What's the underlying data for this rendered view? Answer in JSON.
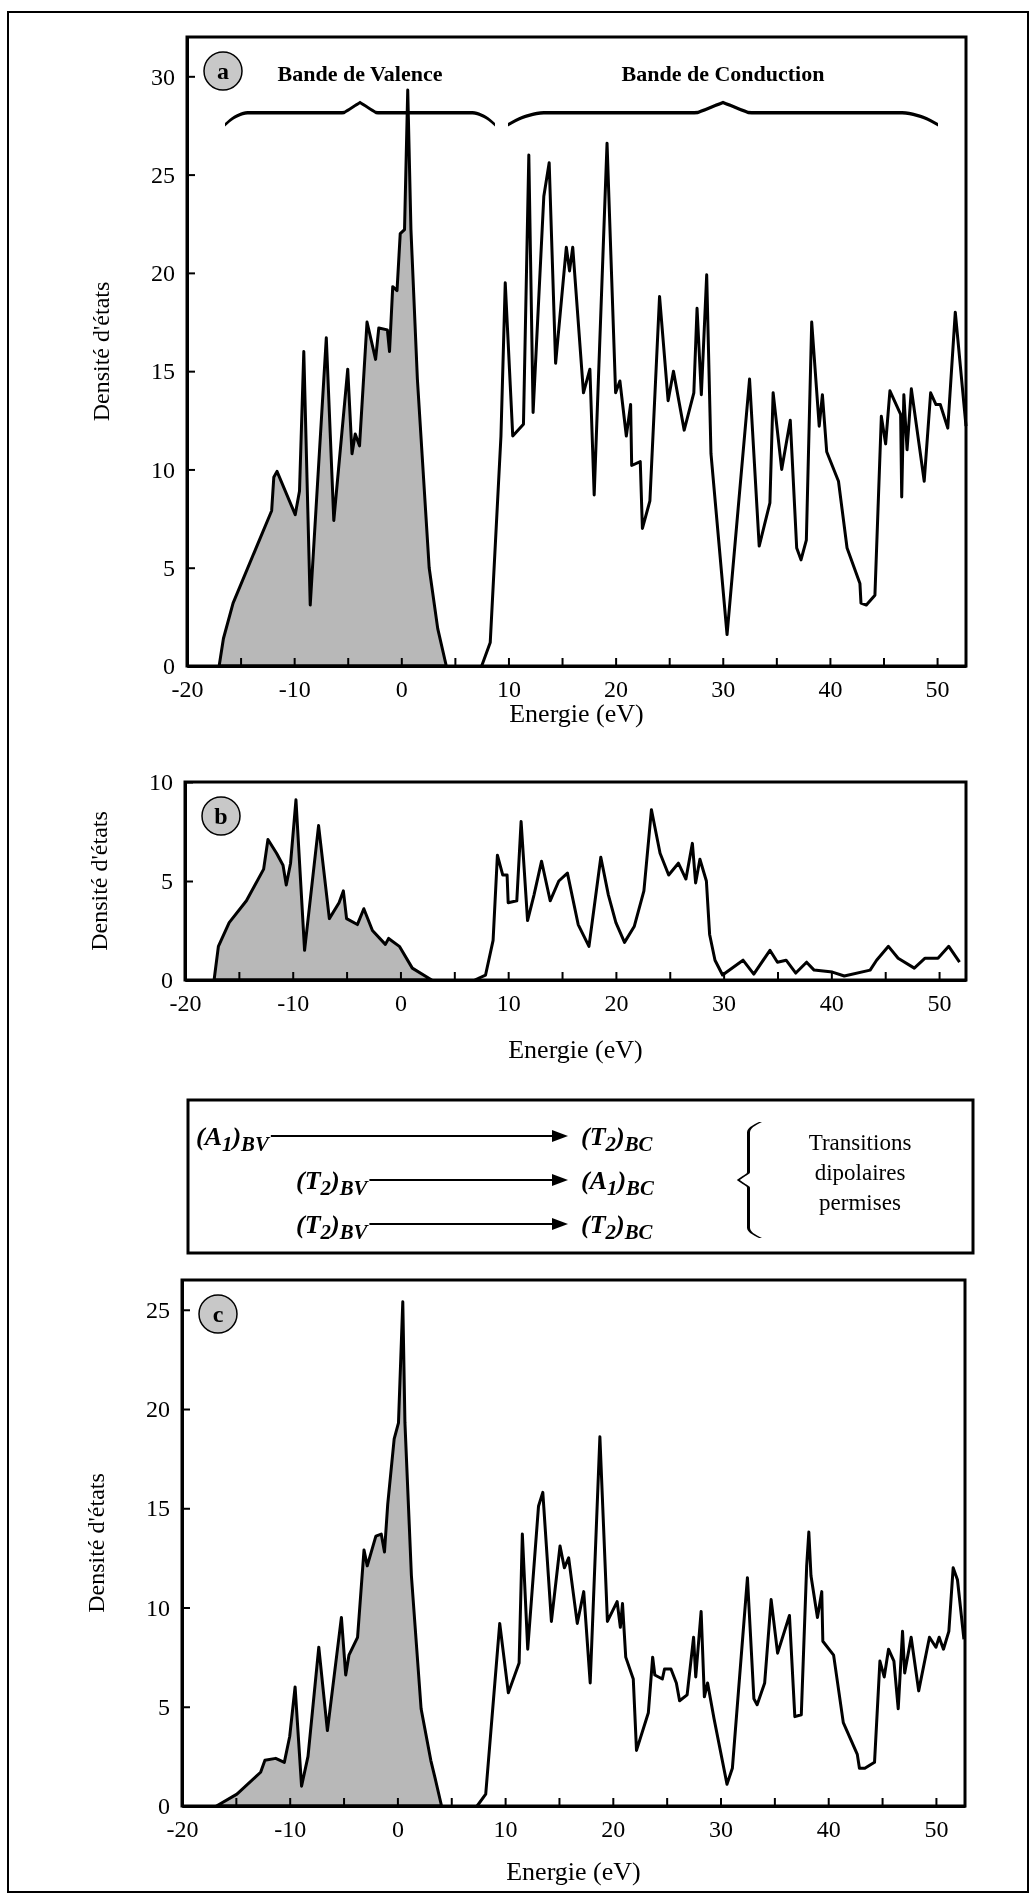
{
  "chart_data": [
    {
      "type": "line",
      "title": "a",
      "xlabel": "Energie (eV)",
      "ylabel": "Densité d'états",
      "xlim": [
        -20,
        52.7
      ],
      "ylim": [
        0,
        32
      ],
      "xticks": [
        -20,
        {
          "value": -15,
          "label": null
        },
        -10,
        {
          "value": -5,
          "label": null
        },
        0,
        {
          "value": 5,
          "label": null
        },
        10,
        {
          "value": 15,
          "label": null
        },
        20,
        {
          "value": 25,
          "label": null
        },
        30,
        {
          "value": 35,
          "label": null
        },
        40,
        {
          "value": 45,
          "label": null
        },
        50
      ],
      "yticks": [
        0,
        5,
        10,
        15,
        20,
        25,
        30
      ],
      "annotations": [
        "Bande de Valence",
        "Bande de Conduction"
      ],
      "series": [
        {
          "type": "area",
          "color": "#b8b8b8",
          "x": [
            -17.0,
            -16.6,
            -15.7,
            -12.1,
            -11.9,
            -11.6,
            -9.9,
            -9.5,
            -9.1,
            -8.5,
            -7.0,
            -6.3,
            -5.0,
            -4.6,
            -4.3,
            -3.9,
            -3.2,
            -2.4,
            -2.1,
            -1.3,
            -1.1,
            -0.8,
            -0.4,
            -0.1,
            0.3,
            0.6,
            0.9,
            1.5,
            2.6,
            3.4,
            4.2
          ],
          "values": [
            0,
            1.4,
            3.2,
            7.9,
            9.6,
            9.9,
            7.7,
            8.9,
            16.0,
            3.1,
            16.7,
            7.4,
            15.1,
            10.8,
            11.8,
            11.2,
            17.5,
            15.6,
            17.2,
            17.1,
            16.0,
            19.3,
            19.1,
            22.0,
            22.2,
            29.3,
            22.2,
            14.6,
            5.0,
            1.9,
            0
          ]
        },
        {
          "type": "line",
          "color": "#000000",
          "x": [
            7.5,
            8.3,
            9.3,
            9.7,
            10.4,
            11.4,
            11.9,
            12.3,
            13.3,
            13.8,
            14.4,
            15.4,
            15.7,
            16.0,
            17.0,
            17.6,
            18.0,
            19.2,
            20.0,
            20.4,
            21.0,
            21.4,
            21.5,
            22.3,
            22.5,
            23.2,
            24.1,
            24.9,
            25.4,
            26.4,
            27.3,
            27.6,
            28.0,
            28.5,
            28.9,
            30.4,
            32.5,
            33.4,
            34.4,
            34.7,
            35.5,
            36.3,
            36.9,
            37.3,
            37.8,
            38.3,
            39.0,
            39.3,
            39.7,
            40.8,
            41.6,
            42.8,
            42.9,
            43.4,
            44.2,
            44.8,
            45.2,
            45.6,
            46.6,
            46.7,
            46.9,
            47.2,
            47.6,
            48.8,
            49.4,
            49.9,
            50.3,
            51.0,
            51.7,
            52.7
          ],
          "values": [
            0,
            1.2,
            11.7,
            19.5,
            11.7,
            12.3,
            26.0,
            12.9,
            23.9,
            25.6,
            15.4,
            21.3,
            20.1,
            21.3,
            13.9,
            15.1,
            8.7,
            26.6,
            13.9,
            14.5,
            11.7,
            13.3,
            10.2,
            10.4,
            7.0,
            8.4,
            18.8,
            13.5,
            15.0,
            12.0,
            13.9,
            18.2,
            13.8,
            19.9,
            10.8,
            1.6,
            14.6,
            6.1,
            8.3,
            13.9,
            10.0,
            12.5,
            6.0,
            5.4,
            6.4,
            17.5,
            12.2,
            13.8,
            10.9,
            9.4,
            6.0,
            4.2,
            3.2,
            3.1,
            3.6,
            12.7,
            11.3,
            14.0,
            12.8,
            8.6,
            13.8,
            11.0,
            14.1,
            9.4,
            13.9,
            13.3,
            13.3,
            12.1,
            18.0,
            12.2
          ]
        }
      ]
    },
    {
      "type": "line",
      "title": "b",
      "xlabel": "Energie (eV)",
      "ylabel": "Densité d'états",
      "xlim": [
        -20,
        52.5
      ],
      "ylim": [
        0,
        10
      ],
      "xticks": [
        -20,
        {
          "value": -15,
          "label": null
        },
        -10,
        {
          "value": -5,
          "label": null
        },
        0,
        {
          "value": 5,
          "label": null
        },
        10,
        {
          "value": 15,
          "label": null
        },
        20,
        {
          "value": 25,
          "label": null
        },
        30,
        {
          "value": 35,
          "label": null
        },
        40,
        {
          "value": 45,
          "label": null
        },
        50
      ],
      "yticks": [
        0,
        5,
        10
      ],
      "series": [
        {
          "type": "area",
          "color": "#b8b8b8",
          "x": [
            -17.3,
            -16.9,
            -15.9,
            -14.3,
            -12.7,
            -12.3,
            -11.5,
            -10.9,
            -10.6,
            -10.2,
            -9.7,
            -8.9,
            -7.6,
            -6.6,
            -5.7,
            -5.3,
            -5.0,
            -4.0,
            -3.4,
            -2.6,
            -1.4,
            -1.1,
            -0.1,
            1.1,
            2.9
          ],
          "values": [
            0,
            1.7,
            2.9,
            4.0,
            5.6,
            7.1,
            6.4,
            5.8,
            4.8,
            5.9,
            9.1,
            1.5,
            7.8,
            3.1,
            3.9,
            4.5,
            3.1,
            2.8,
            3.6,
            2.5,
            1.8,
            2.1,
            1.7,
            0.6,
            0
          ]
        },
        {
          "type": "line",
          "color": "#000000",
          "x": [
            6.9,
            7.9,
            8.6,
            9.0,
            9.5,
            9.9,
            10.0,
            10.8,
            11.2,
            11.8,
            12.4,
            13.1,
            13.9,
            14.7,
            15.5,
            16.5,
            17.5,
            18.6,
            19.3,
            20.0,
            20.8,
            21.7,
            22.6,
            23.3,
            24.1,
            24.9,
            25.8,
            26.5,
            27.1,
            27.4,
            27.8,
            28.4,
            28.7,
            29.2,
            29.9,
            31.8,
            32.8,
            34.3,
            35.0,
            35.8,
            36.7,
            37.7,
            38.4,
            40.1,
            41.2,
            43.6,
            44.2,
            45.3,
            46.2,
            47.7,
            48.7,
            49.9,
            50.9,
            51.9
          ],
          "values": [
            0,
            0.25,
            2.0,
            6.3,
            5.3,
            5.3,
            3.9,
            4.0,
            8.0,
            3.0,
            4.3,
            6.0,
            4.0,
            5.0,
            5.4,
            2.8,
            1.7,
            6.2,
            4.3,
            2.9,
            1.9,
            2.7,
            4.5,
            8.6,
            6.4,
            5.3,
            5.9,
            5.1,
            6.9,
            4.9,
            6.1,
            5.0,
            2.3,
            1.0,
            0.25,
            1.0,
            0.3,
            1.5,
            0.9,
            1.0,
            0.35,
            0.9,
            0.5,
            0.4,
            0.2,
            0.5,
            1.0,
            1.7,
            1.1,
            0.6,
            1.1,
            1.1,
            1.7,
            0.9
          ]
        }
      ]
    },
    {
      "type": "other",
      "annotations": [
        "(A$_{1}$)$_{BV}$",
        "(T$_{2}$)$_{BC}$",
        "(T$_{2}$)$_{BV}$",
        "(A$_{1}$)$_{BC}$",
        "(T$_{2}$)$_{BV}$",
        "(T$_{2}$)$_{BC}$",
        "Transitions dipolaires permises"
      ]
    },
    {
      "type": "line",
      "title": "c",
      "xlabel": "Energie (eV)",
      "ylabel": "Densité d'états",
      "xlim": [
        -20,
        52.7
      ],
      "ylim": [
        0,
        26.5
      ],
      "xticks": [
        -20,
        {
          "value": -15,
          "label": null
        },
        -10,
        {
          "value": -5,
          "label": null
        },
        0,
        {
          "value": 5,
          "label": null
        },
        10,
        {
          "value": 15,
          "label": null
        },
        20,
        {
          "value": 25,
          "label": null
        },
        30,
        {
          "value": 35,
          "label": null
        },
        40,
        {
          "value": 45,
          "label": null
        },
        50
      ],
      "yticks": [
        0,
        5,
        10,
        15,
        20,
        25
      ],
      "series": [
        {
          "type": "area",
          "color": "#b8b8b8",
          "x": [
            -16.8,
            -14.9,
            -12.7,
            -12.3,
            -11.3,
            -10.5,
            -10.0,
            -9.5,
            -8.9,
            -8.3,
            -7.3,
            -6.5,
            -5.2,
            -4.8,
            -4.5,
            -3.7,
            -3.1,
            -2.8,
            -2.0,
            -1.5,
            -1.2,
            -0.9,
            -0.3,
            0.1,
            0.5,
            0.7,
            1.3,
            2.2,
            3.1,
            3.5,
            4.1
          ],
          "values": [
            0,
            0.6,
            1.7,
            2.3,
            2.4,
            2.2,
            3.5,
            6.0,
            1.0,
            2.5,
            8.0,
            3.8,
            9.5,
            6.6,
            7.6,
            8.5,
            12.9,
            12.1,
            13.6,
            13.7,
            12.8,
            15.2,
            18.5,
            19.3,
            25.4,
            19.3,
            11.6,
            4.9,
            2.3,
            1.4,
            0
          ]
        },
        {
          "type": "line",
          "color": "#000000",
          "x": [
            7.4,
            8.2,
            9.5,
            10.3,
            11.3,
            11.6,
            12.1,
            13.1,
            13.5,
            14.3,
            15.1,
            15.5,
            15.9,
            16.7,
            17.3,
            17.9,
            18.8,
            19.5,
            20.4,
            20.7,
            20.9,
            21.2,
            21.9,
            22.2,
            23.3,
            23.7,
            23.9,
            24.6,
            24.8,
            25.4,
            25.9,
            26.2,
            26.9,
            27.5,
            27.7,
            28.2,
            28.5,
            28.8,
            29.4,
            30.6,
            31.1,
            32.5,
            33.1,
            33.4,
            34.1,
            34.7,
            35.3,
            36.4,
            36.9,
            37.5,
            38.0,
            38.2,
            38.4,
            39.0,
            39.4,
            39.5,
            40.5,
            41.4,
            42.7,
            42.9,
            43.4,
            44.3,
            44.8,
            45.2,
            45.6,
            46.1,
            46.5,
            46.9,
            47.1,
            47.7,
            48.4,
            49.4,
            50.0,
            50.3,
            50.7,
            51.2,
            51.6,
            52.0,
            52.6
          ],
          "values": [
            0,
            0.6,
            9.2,
            5.7,
            7.2,
            13.7,
            7.9,
            15.1,
            15.8,
            9.3,
            13.1,
            12.0,
            12.5,
            9.2,
            10.8,
            6.2,
            18.6,
            9.3,
            10.3,
            9.0,
            10.2,
            7.5,
            6.4,
            2.8,
            4.7,
            7.5,
            6.6,
            6.4,
            6.9,
            6.9,
            6.2,
            5.3,
            5.6,
            8.5,
            6.5,
            9.8,
            5.5,
            6.2,
            4.4,
            1.1,
            1.9,
            11.5,
            5.4,
            5.1,
            6.2,
            10.4,
            7.7,
            9.6,
            4.5,
            4.6,
            12.1,
            13.8,
            11.6,
            9.5,
            10.8,
            8.3,
            7.6,
            4.2,
            2.6,
            1.9,
            1.9,
            2.2,
            7.3,
            6.5,
            7.9,
            7.3,
            4.9,
            8.8,
            6.7,
            8.5,
            5.8,
            8.5,
            8.0,
            8.5,
            7.9,
            8.8,
            12.0,
            11.4,
            8.4
          ]
        }
      ]
    }
  ]
}
